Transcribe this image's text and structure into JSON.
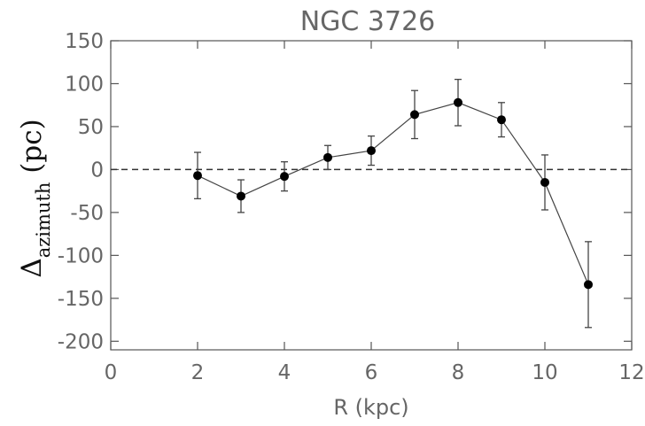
{
  "chart_data": {
    "type": "scatter",
    "title": "NGC 3726",
    "xlabel": "R (kpc)",
    "ylabel_main": "Δ",
    "ylabel_sub": "azimuth",
    "ylabel_unit": " (pc)",
    "xlim": [
      0,
      12
    ],
    "ylim": [
      -210,
      150
    ],
    "xticks": [
      0,
      2,
      4,
      6,
      8,
      10,
      12
    ],
    "yticks": [
      150,
      100,
      50,
      0,
      -50,
      -100,
      -150,
      -200
    ],
    "reference_line": 0,
    "grid": false,
    "series": [
      {
        "x": [
          2,
          3,
          4,
          5,
          6,
          7,
          8,
          9,
          10,
          11
        ],
        "y": [
          -7,
          -31,
          -8,
          14,
          22,
          64,
          78,
          58,
          -15,
          -134
        ],
        "yerr": [
          27,
          19,
          17,
          14,
          17,
          28,
          27,
          20,
          32,
          50
        ]
      }
    ]
  }
}
